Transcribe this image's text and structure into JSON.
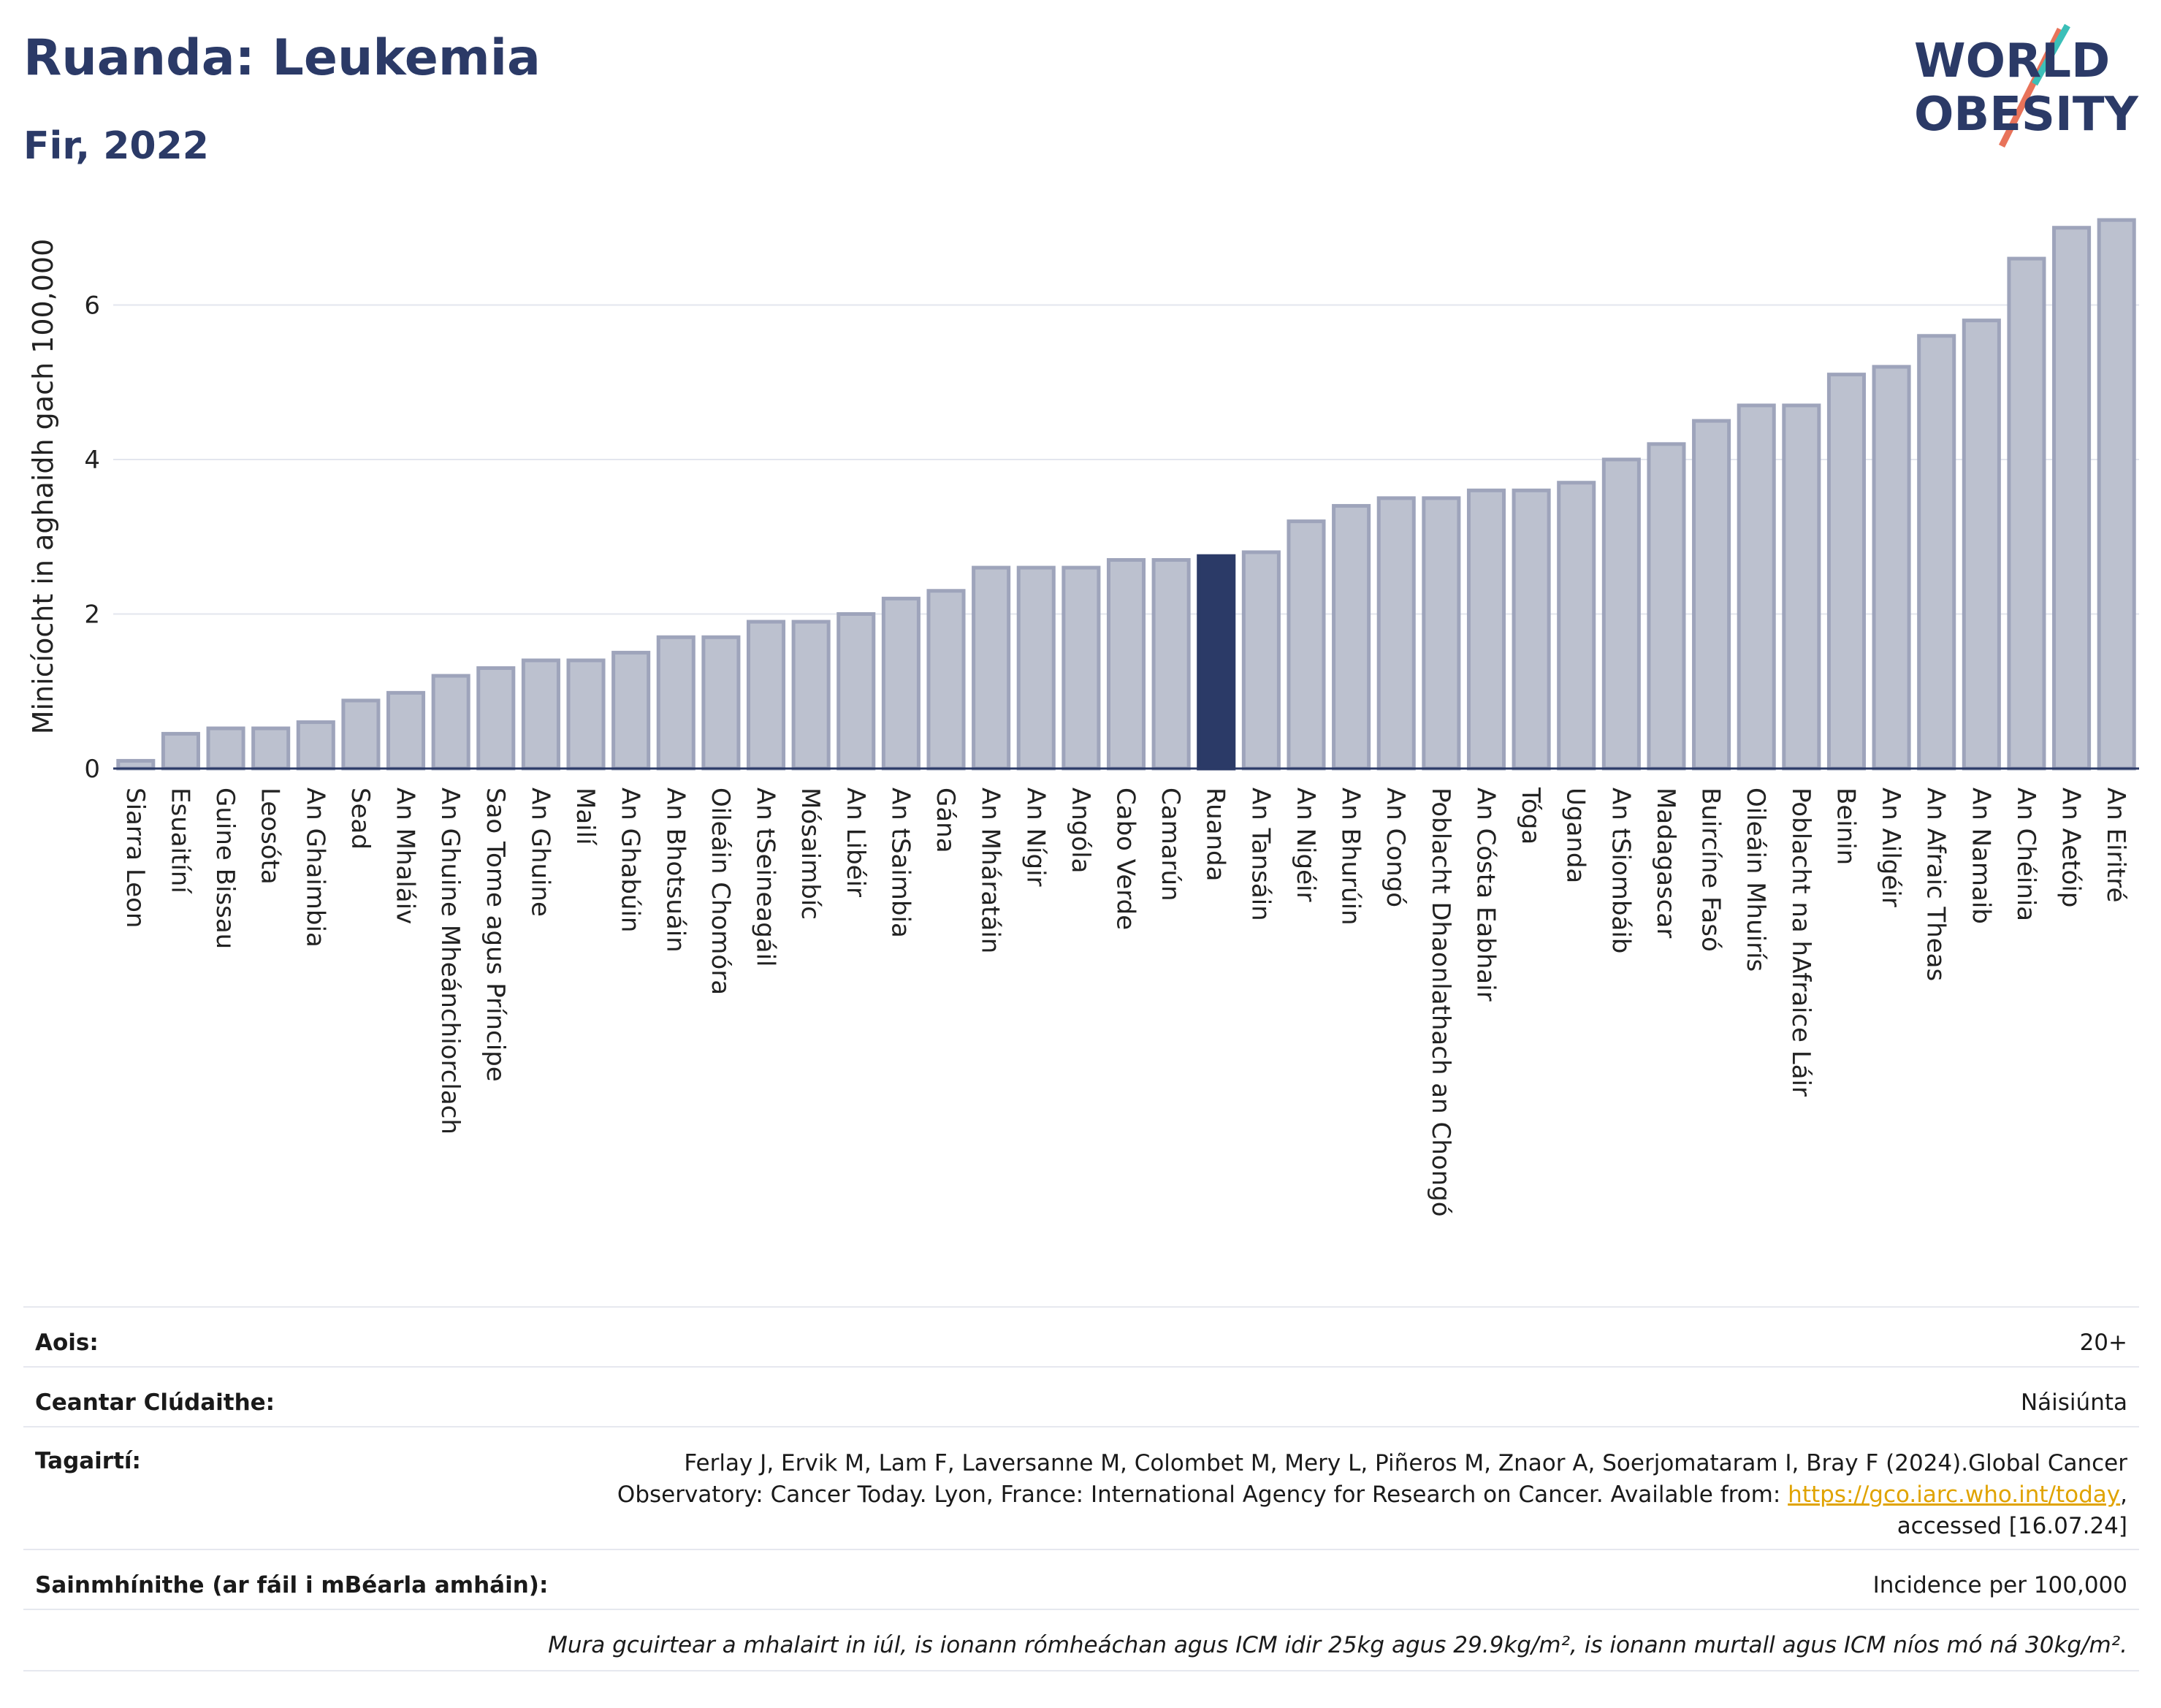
{
  "header": {
    "title": "Ruanda: Leukemia",
    "subtitle": "Fir, 2022",
    "logo_text_line1": "WORLD",
    "logo_text_line2": "OBESITY"
  },
  "colors": {
    "title": "#2b3a67",
    "bar": "#bcc1cf",
    "bar_stroke": "#9ea4bb",
    "highlight": "#2b3a67",
    "link": "#e0a300"
  },
  "chart_data": {
    "type": "bar",
    "ylabel": "Minicíocht in aghaidh gach 100,000",
    "xlabel": "",
    "ylim": [
      0,
      7.3
    ],
    "yticks": [
      0,
      2,
      4,
      6
    ],
    "grid": true,
    "highlight_category": "Ruanda",
    "categories": [
      "Siarra Leon",
      "Esuaitíní",
      "Guine Bissau",
      "Leosóta",
      "An Ghaimbia",
      "Sead",
      "An Mhaláiv",
      "An Ghuine Mheánchiorclach",
      "Sao Tome agus Príncipe",
      "An Ghuine",
      "Mailí",
      "An Ghabúin",
      "An Bhotsuáin",
      "Oileáin Chomóra",
      "An tSeineagáil",
      "Mósaimbíc",
      "An Libéir",
      "An tSaimbia",
      "Gána",
      "An Mháratáin",
      "An Nígir",
      "Angóla",
      "Cabo Verde",
      "Camarún",
      "Ruanda",
      "An Tansáin",
      "An Nigéir",
      "An Bhurúin",
      "An Congó",
      "Poblacht Dhaonlathach an Chongó",
      "An Cósta Eabhair",
      "Tóga",
      "Uganda",
      "An tSiombáib",
      "Madagascar",
      "Buircíne Fasó",
      "Oileáin Mhuirís",
      "Poblacht na hAfraice Láir",
      "Beinin",
      "An Ailgéir",
      "An Afraic Theas",
      "An Namaib",
      "An Chéinia",
      "An Aetóip",
      "An Eiritré"
    ],
    "values": [
      0.1,
      0.45,
      0.52,
      0.52,
      0.6,
      0.88,
      0.98,
      1.2,
      1.3,
      1.4,
      1.4,
      1.5,
      1.7,
      1.7,
      1.9,
      1.9,
      2.0,
      2.2,
      2.3,
      2.6,
      2.6,
      2.6,
      2.7,
      2.7,
      2.75,
      2.8,
      3.2,
      3.4,
      3.5,
      3.5,
      3.6,
      3.6,
      3.7,
      4.0,
      4.2,
      4.5,
      4.7,
      4.7,
      5.1,
      5.2,
      5.6,
      5.8,
      6.6,
      7.0,
      7.1
    ]
  },
  "info": {
    "age_label": "Aois:",
    "age_value": "20+",
    "area_label": "Ceantar Clúdaithe:",
    "area_value": "Náisiúnta",
    "refs_label": "Tagairtí:",
    "refs_line1": "Ferlay J, Ervik M, Lam F, Laversanne M, Colombet M, Mery L, Piñeros M, Znaor A, Soerjomataram I, Bray F (2024).Global Cancer",
    "refs_line2_pre": "Observatory: Cancer Today. Lyon, France: International Agency for Research on Cancer. Available from: ",
    "refs_link": "https://gco.iarc.who.int/today",
    "refs_line2_post": ",",
    "refs_line3": "accessed [16.07.24]",
    "defs_label": "Sainmhínithe (ar fáil i mBéarla amháin):",
    "defs_value": "Incidence per 100,000",
    "note": "Mura gcuirtear a mhalairt in iúl, is ionann rómheáchan agus ICM idir 25kg agus 29.9kg/m², is ionann murtall agus ICM níos mó ná 30kg/m²."
  }
}
